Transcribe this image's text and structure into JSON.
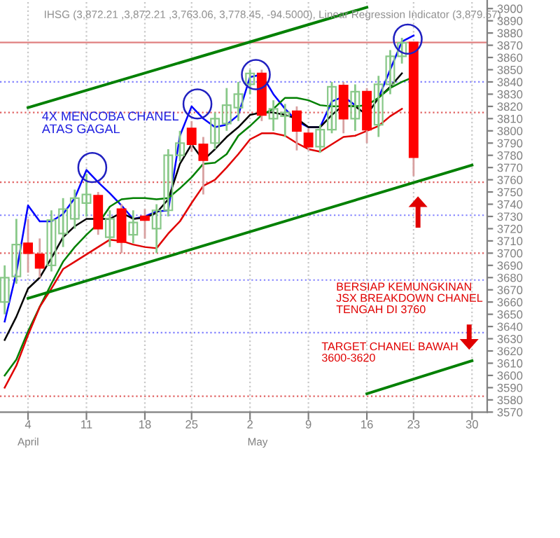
{
  "chart_data": {
    "type": "candlestick",
    "title": "IHSG (3,872.21 ,3,872.21 ,3,763.06, 3,778.45, -94.5000), Linear Regression Indicator (3,879.57)",
    "categories": [
      null,
      null,
      "4",
      null,
      null,
      null,
      null,
      "11",
      null,
      null,
      null,
      null,
      "18",
      null,
      null,
      null,
      "25",
      null,
      null,
      null,
      null,
      "2",
      null,
      null,
      null,
      null,
      "9",
      null,
      null,
      null,
      null,
      "16",
      null,
      null,
      null,
      "23",
      null,
      null,
      null,
      null,
      "30",
      null
    ],
    "ohlc": [
      [
        3660,
        3690,
        3650,
        3680
      ],
      [
        3681,
        3728,
        3675,
        3707
      ],
      [
        3708,
        3728,
        3684,
        3700
      ],
      [
        3699,
        3712,
        3680,
        3688
      ],
      [
        3690,
        3735,
        3685,
        3727
      ],
      [
        3716,
        3745,
        3705,
        3736
      ],
      [
        3728,
        3752,
        3720,
        3745
      ],
      [
        3741,
        3765,
        3730,
        3748
      ],
      [
        3747,
        3750,
        3715,
        3720
      ],
      [
        3713,
        3735,
        3705,
        3728
      ],
      [
        3736,
        3740,
        3700,
        3709
      ],
      [
        3715,
        3735,
        3708,
        3725
      ],
      [
        3730,
        3736,
        3712,
        3727
      ],
      [
        3720,
        3740,
        3700,
        3735
      ],
      [
        3735,
        3785,
        3730,
        3780
      ],
      [
        3780,
        3800,
        3775,
        3790
      ],
      [
        3802,
        3808,
        3783,
        3789
      ],
      [
        3789,
        3795,
        3748,
        3776
      ],
      [
        3790,
        3815,
        3785,
        3810
      ],
      [
        3806,
        3835,
        3800,
        3821
      ],
      [
        3819,
        3840,
        3808,
        3830
      ],
      [
        3838,
        3850,
        3830,
        3847
      ],
      [
        3847,
        3850,
        3808,
        3813
      ],
      [
        3810,
        3825,
        3800,
        3818
      ],
      [
        3812,
        3822,
        3795,
        3815
      ],
      [
        3816,
        3820,
        3784,
        3800
      ],
      [
        3798,
        3802,
        3784,
        3787
      ],
      [
        3787,
        3805,
        3782,
        3801
      ],
      [
        3801,
        3840,
        3798,
        3836
      ],
      [
        3837,
        3840,
        3798,
        3810
      ],
      [
        3810,
        3838,
        3800,
        3832
      ],
      [
        3832,
        3835,
        3790,
        3801
      ],
      [
        3805,
        3845,
        3795,
        3838
      ],
      [
        3838,
        3866,
        3830,
        3861
      ],
      [
        3861,
        3876,
        3855,
        3872
      ],
      [
        3872.21,
        3872.21,
        3763.06,
        3778.45
      ],
      null,
      null,
      null,
      null,
      null,
      null
    ],
    "series": [
      {
        "type": "line",
        "color": "#0000ff",
        "values": [
          3644,
          3684,
          3739,
          3726,
          3726,
          3732,
          3745,
          3768,
          3758,
          3749,
          3739,
          3728,
          3730,
          3734,
          3735,
          3796,
          3820,
          3810,
          3803,
          3805,
          3813,
          3844,
          3846,
          3830,
          3818,
          3808,
          3803,
          3803,
          3824,
          3828,
          3821,
          null,
          3827,
          3850,
          3873,
          3878,
          null,
          null,
          null,
          null,
          null,
          null
        ]
      },
      {
        "type": "line",
        "color": "#000000",
        "values": [
          3629,
          3648,
          3671,
          3680,
          3696,
          3713,
          3722,
          3728,
          3728,
          3728,
          3733,
          3728,
          3729,
          3733,
          3744,
          3773,
          3789,
          3776,
          3785,
          3795,
          3803,
          3813,
          3815,
          3815,
          3813,
          3810,
          3803,
          3803,
          3813,
          3821,
          3820,
          3813,
          3827,
          3836,
          3847,
          null,
          null,
          null,
          null,
          null,
          null,
          null
        ]
      },
      {
        "type": "line",
        "color": "#008000",
        "values": [
          3600,
          3613,
          3636,
          3656,
          3675,
          3693,
          3705,
          3715,
          3724,
          3738,
          3744,
          3745,
          3745,
          3744,
          3745,
          3753,
          3762,
          3773,
          3774,
          3781,
          3796,
          3804,
          3813,
          3818,
          3827,
          3827,
          3825,
          3821,
          3820,
          3820,
          3820,
          3821,
          3827,
          3835,
          3840,
          3844,
          null,
          null,
          null,
          null,
          null,
          null
        ]
      },
      {
        "type": "line",
        "color": "#e00000",
        "values": [
          3590,
          3608,
          3633,
          3656,
          3671,
          3687,
          3693,
          3699,
          3705,
          3711,
          3710,
          3707,
          3705,
          3704,
          3716,
          3726,
          3741,
          3755,
          3760,
          3770,
          3781,
          3793,
          3798,
          3798,
          3796,
          3790,
          3785,
          3783,
          3789,
          3795,
          3796,
          3800,
          3804,
          3812,
          3818,
          null,
          null,
          null,
          null,
          null,
          null,
          null
        ]
      },
      {
        "type": "line",
        "color": "#008000",
        "x": [
          "4",
          "16"
        ],
        "values": [
          3819,
          3901
        ]
      },
      {
        "type": "line",
        "color": "#008000",
        "x": [
          "4",
          "30"
        ],
        "values": [
          3663,
          3772
        ]
      },
      {
        "type": "line",
        "color": "#008000",
        "x": [
          "16",
          "30"
        ],
        "values": [
          3585,
          3612
        ]
      }
    ],
    "ref_lines": [
      {
        "axis": "y",
        "value": 3872.21,
        "color": "#e08080",
        "line_style": "solid"
      },
      {
        "axis": "y",
        "value": 3840,
        "color": "#8080ff",
        "line_style": "dotted"
      },
      {
        "axis": "y",
        "value": 3815,
        "color": "#e06060",
        "line_style": "dotted"
      },
      {
        "axis": "y",
        "value": 3758,
        "color": "#e06060",
        "line_style": "dotted"
      },
      {
        "axis": "y",
        "value": 3731,
        "color": "#8080ff",
        "line_style": "dotted"
      },
      {
        "axis": "y",
        "value": 3700,
        "color": "#e06060",
        "line_style": "dotted"
      },
      {
        "axis": "y",
        "value": 3678,
        "color": "#8080ff",
        "line_style": "dotted"
      },
      {
        "axis": "y",
        "value": 3635,
        "color": "#8080ff",
        "line_style": "dotted"
      },
      {
        "axis": "y",
        "value": 3583,
        "color": "#e06060",
        "line_style": "dotted"
      }
    ],
    "annotations": [
      "4X MENCOBA CHANEL\nATAS GAGAL",
      "BERSIAP KEMUNGKINAN\nJSX BREAKDOWN CHANEL\nTENGAH DI 3760",
      "TARGET CHANEL BAWAH\n3600-3620",
      "April",
      "May"
    ],
    "ylim": [
      3570,
      3907
    ],
    "yticks": [
      3570,
      3580,
      3590,
      3600,
      3610,
      3620,
      3630,
      3640,
      3650,
      3660,
      3670,
      3680,
      3690,
      3700,
      3710,
      3720,
      3730,
      3740,
      3750,
      3760,
      3770,
      3780,
      3790,
      3800,
      3810,
      3820,
      3830,
      3840,
      3850,
      3860,
      3870,
      3880,
      3890,
      3900
    ],
    "grid": "x",
    "legend": false,
    "marker": "none"
  }
}
